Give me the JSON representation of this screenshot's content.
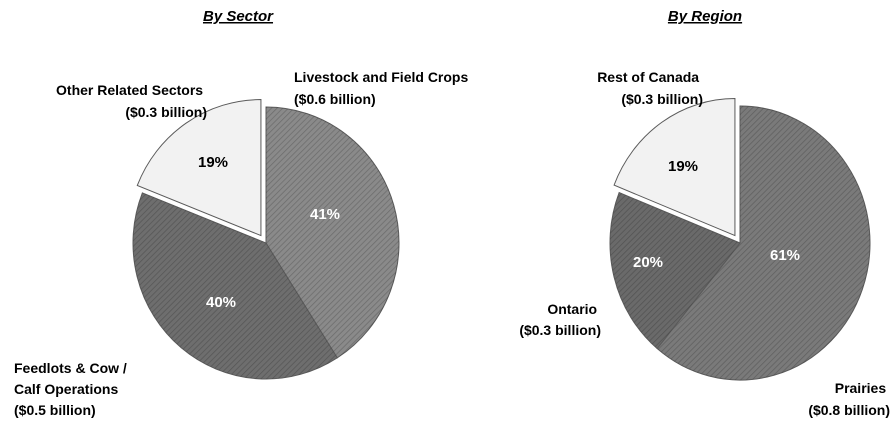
{
  "chart_data": [
    {
      "type": "pie",
      "title": "By Sector",
      "slices": [
        {
          "label_lines": [
            "Livestock and Field Crops",
            "($0.6 billion)"
          ],
          "percent": "41%",
          "value": 41,
          "color": "#8a8a8a"
        },
        {
          "label_lines": [
            "Feedlots & Cow /",
            "Calf Operations",
            "($0.5 billion)"
          ],
          "percent": "40%",
          "value": 40,
          "color": "#6e6e6e"
        },
        {
          "label_lines": [
            "Other Related Sectors",
            "($0.3 billion)"
          ],
          "percent": "19%",
          "value": 19,
          "color": "#f2f2f2"
        }
      ]
    },
    {
      "type": "pie",
      "title": "By Region",
      "slices": [
        {
          "label_lines": [
            "Prairies",
            "($0.8 billion)"
          ],
          "percent": "61%",
          "value": 61,
          "color": "#7a7a7a"
        },
        {
          "label_lines": [
            "Ontario",
            "($0.3 billion)"
          ],
          "percent": "20%",
          "value": 20,
          "color": "#6a6a6a"
        },
        {
          "label_lines": [
            "Rest of Canada",
            "($0.3 billion)"
          ],
          "percent": "19%",
          "value": 19,
          "color": "#f2f2f2"
        }
      ]
    }
  ]
}
